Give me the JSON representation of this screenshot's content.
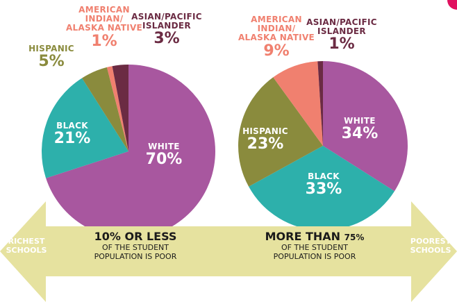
{
  "chart_data": [
    {
      "type": "pie",
      "categories": [
        "WHITE",
        "BLACK",
        "HISPANIC",
        "AMERICAN\nINDIAN/\nALASKA NATIVE",
        "ASIAN/PACIFIC\nISLANDER"
      ],
      "values": [
        70,
        21,
        5,
        1,
        3
      ],
      "value_labels": [
        "70%",
        "21%",
        "5%",
        "1%",
        "3%"
      ],
      "colors": [
        "#a8579f",
        "#2db0ab",
        "#8a8b3d",
        "#f0806f",
        "#6b2b43"
      ],
      "annotation": {
        "heading": "10% OR LESS",
        "text": "OF THE STUDENT\nPOPULATION IS POOR"
      }
    },
    {
      "type": "pie",
      "categories": [
        "WHITE",
        "BLACK",
        "HISPANIC",
        "AMERICAN\nINDIAN/\nALASKA NATIVE",
        "ASIAN/PACIFIC\nISLANDER"
      ],
      "values": [
        34,
        33,
        23,
        9,
        1
      ],
      "value_labels": [
        "34%",
        "33%",
        "23%",
        "9%",
        "1%"
      ],
      "colors": [
        "#a8579f",
        "#2db0ab",
        "#8a8b3d",
        "#f0806f",
        "#6b2b43"
      ],
      "annotation": {
        "heading": "MORE THAN",
        "heading_small": "75%",
        "text": "OF THE STUDENT\nPOPULATION IS POOR"
      }
    }
  ],
  "arrow": {
    "left": "RICHEST\nSCHOOLS",
    "right": "POOREST\nSCHOOLS"
  }
}
